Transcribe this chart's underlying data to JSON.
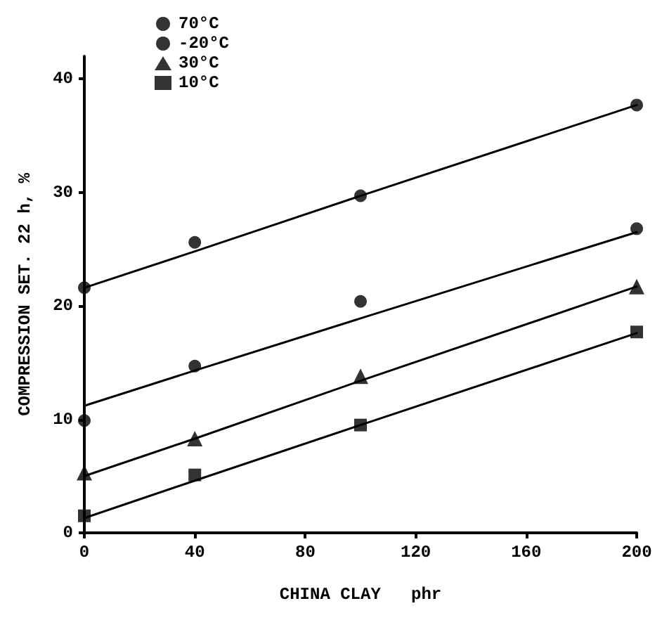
{
  "chart_data": {
    "type": "scatter",
    "xlabel": "CHINA CLAY   phr",
    "ylabel": "COMPRESSION SET. 22 h, %",
    "x": [
      0,
      40,
      100,
      200
    ],
    "series": [
      {
        "name": "70°C",
        "color": "#000000",
        "marker": "circle",
        "values": [
          21.6,
          25.6,
          29.7,
          37.7
        ]
      },
      {
        "name": "-20°C",
        "color": "#000000",
        "marker": "circle",
        "values": [
          9.9,
          14.7,
          20.4,
          26.8
        ]
      },
      {
        "name": "30°C",
        "color": "#000000",
        "marker": "triangle",
        "values": [
          5.3,
          8.3,
          13.8,
          21.7
        ]
      },
      {
        "name": "10°C",
        "color": "#000000",
        "marker": "square",
        "values": [
          1.5,
          5.1,
          9.5,
          17.7
        ]
      },
      {
        "type": "line",
        "color": "#000000",
        "values": [
          21.6,
          24.8,
          29.7,
          37.7
        ]
      },
      {
        "type": "line",
        "color": "#000000",
        "values": [
          11.2,
          14.3,
          18.9,
          26.5
        ]
      },
      {
        "type": "line",
        "color": "#000000",
        "values": [
          5.0,
          8.3,
          13.4,
          21.7
        ]
      },
      {
        "type": "line",
        "color": "#000000",
        "values": [
          1.3,
          4.6,
          9.5,
          17.6
        ]
      }
    ],
    "xlim": [
      0,
      200
    ],
    "xticks": [
      0,
      40,
      80,
      120,
      160,
      200
    ],
    "ylim": [
      0,
      42
    ],
    "yticks": [
      0,
      10,
      20,
      30,
      40
    ],
    "grid": false,
    "legend": "top left"
  }
}
